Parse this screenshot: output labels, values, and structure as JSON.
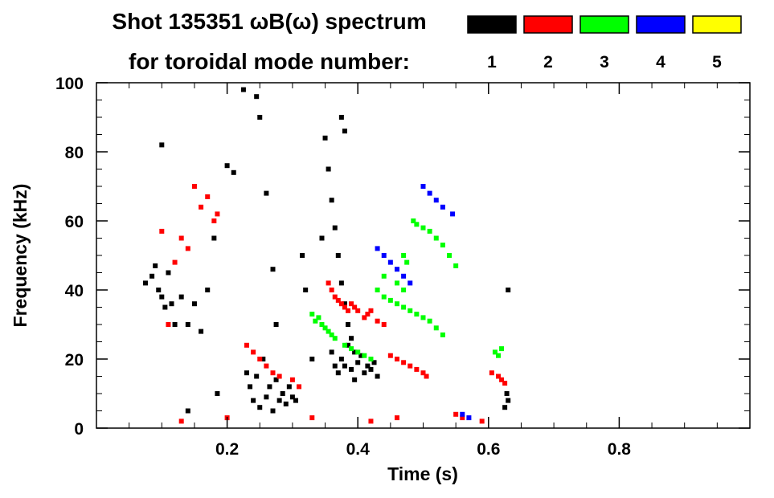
{
  "chart_data": {
    "type": "scatter",
    "title_line1": "Shot 135351 ωB(ω) spectrum",
    "title_line2": "for toroidal mode number:",
    "xlabel": "Time (s)",
    "ylabel": "Frequency (kHz)",
    "xlim": [
      0.0,
      1.0
    ],
    "ylim": [
      0,
      100
    ],
    "x_ticks": [
      0.2,
      0.4,
      0.6,
      0.8
    ],
    "x_tick_labels": [
      "0.2",
      "0.4",
      "0.6",
      "0.8"
    ],
    "y_ticks": [
      0,
      20,
      40,
      60,
      80,
      100
    ],
    "y_tick_labels": [
      "0",
      "20",
      "40",
      "60",
      "80",
      "100"
    ],
    "grid": false,
    "legend_position": "top-right",
    "legend": [
      {
        "n": "1",
        "color": "#000000"
      },
      {
        "n": "2",
        "color": "#ff0000"
      },
      {
        "n": "3",
        "color": "#00ff00"
      },
      {
        "n": "4",
        "color": "#0000ff"
      },
      {
        "n": "5",
        "color": "#ffff00"
      }
    ],
    "series": [
      {
        "n": "1",
        "color": "#000000",
        "points": [
          [
            0.075,
            42
          ],
          [
            0.085,
            44
          ],
          [
            0.09,
            47
          ],
          [
            0.095,
            40
          ],
          [
            0.1,
            38
          ],
          [
            0.105,
            35
          ],
          [
            0.11,
            45
          ],
          [
            0.115,
            36
          ],
          [
            0.12,
            30
          ],
          [
            0.1,
            82
          ],
          [
            0.13,
            38
          ],
          [
            0.14,
            30
          ],
          [
            0.15,
            36
          ],
          [
            0.16,
            28
          ],
          [
            0.17,
            40
          ],
          [
            0.18,
            55
          ],
          [
            0.185,
            10
          ],
          [
            0.14,
            5
          ],
          [
            0.2,
            76
          ],
          [
            0.21,
            74
          ],
          [
            0.225,
            98
          ],
          [
            0.23,
            16
          ],
          [
            0.235,
            12
          ],
          [
            0.24,
            8
          ],
          [
            0.245,
            15
          ],
          [
            0.25,
            6
          ],
          [
            0.255,
            20
          ],
          [
            0.26,
            9
          ],
          [
            0.265,
            12
          ],
          [
            0.27,
            5
          ],
          [
            0.275,
            14
          ],
          [
            0.28,
            8
          ],
          [
            0.285,
            10
          ],
          [
            0.29,
            7
          ],
          [
            0.295,
            12
          ],
          [
            0.3,
            9
          ],
          [
            0.305,
            8
          ],
          [
            0.245,
            96
          ],
          [
            0.25,
            90
          ],
          [
            0.26,
            68
          ],
          [
            0.27,
            46
          ],
          [
            0.275,
            30
          ],
          [
            0.315,
            50
          ],
          [
            0.32,
            40
          ],
          [
            0.33,
            20
          ],
          [
            0.345,
            55
          ],
          [
            0.35,
            84
          ],
          [
            0.355,
            75
          ],
          [
            0.36,
            66
          ],
          [
            0.365,
            58
          ],
          [
            0.37,
            50
          ],
          [
            0.375,
            42
          ],
          [
            0.38,
            36
          ],
          [
            0.385,
            30
          ],
          [
            0.39,
            26
          ],
          [
            0.395,
            22
          ],
          [
            0.36,
            22
          ],
          [
            0.365,
            18
          ],
          [
            0.37,
            16
          ],
          [
            0.375,
            20
          ],
          [
            0.38,
            18
          ],
          [
            0.385,
            24
          ],
          [
            0.39,
            17
          ],
          [
            0.395,
            14
          ],
          [
            0.4,
            19
          ],
          [
            0.405,
            21
          ],
          [
            0.41,
            16
          ],
          [
            0.415,
            18
          ],
          [
            0.42,
            17
          ],
          [
            0.425,
            19
          ],
          [
            0.43,
            15
          ],
          [
            0.375,
            90
          ],
          [
            0.38,
            86
          ],
          [
            0.63,
            40
          ],
          [
            0.625,
            6
          ],
          [
            0.628,
            10
          ],
          [
            0.63,
            8
          ]
        ]
      },
      {
        "n": "2",
        "color": "#ff0000",
        "points": [
          [
            0.1,
            57
          ],
          [
            0.11,
            30
          ],
          [
            0.12,
            48
          ],
          [
            0.13,
            55
          ],
          [
            0.14,
            52
          ],
          [
            0.15,
            70
          ],
          [
            0.16,
            64
          ],
          [
            0.17,
            67
          ],
          [
            0.18,
            60
          ],
          [
            0.185,
            62
          ],
          [
            0.23,
            24
          ],
          [
            0.24,
            22
          ],
          [
            0.25,
            20
          ],
          [
            0.26,
            18
          ],
          [
            0.27,
            16
          ],
          [
            0.28,
            15
          ],
          [
            0.3,
            14
          ],
          [
            0.31,
            12
          ],
          [
            0.355,
            42
          ],
          [
            0.36,
            40
          ],
          [
            0.365,
            38
          ],
          [
            0.37,
            37
          ],
          [
            0.375,
            36
          ],
          [
            0.38,
            35
          ],
          [
            0.385,
            34
          ],
          [
            0.39,
            36
          ],
          [
            0.395,
            35
          ],
          [
            0.4,
            34
          ],
          [
            0.41,
            32
          ],
          [
            0.415,
            33
          ],
          [
            0.42,
            34
          ],
          [
            0.43,
            31
          ],
          [
            0.44,
            30
          ],
          [
            0.45,
            21
          ],
          [
            0.46,
            20
          ],
          [
            0.47,
            19
          ],
          [
            0.48,
            18
          ],
          [
            0.49,
            17
          ],
          [
            0.5,
            16
          ],
          [
            0.505,
            15
          ],
          [
            0.55,
            4
          ],
          [
            0.56,
            3
          ],
          [
            0.59,
            2
          ],
          [
            0.605,
            16
          ],
          [
            0.615,
            15
          ],
          [
            0.62,
            14
          ],
          [
            0.625,
            13
          ],
          [
            0.13,
            2
          ],
          [
            0.2,
            3
          ],
          [
            0.33,
            3
          ],
          [
            0.42,
            2
          ],
          [
            0.46,
            3
          ]
        ]
      },
      {
        "n": "3",
        "color": "#00ff00",
        "points": [
          [
            0.33,
            33
          ],
          [
            0.335,
            31
          ],
          [
            0.34,
            32
          ],
          [
            0.345,
            30
          ],
          [
            0.35,
            29
          ],
          [
            0.355,
            28
          ],
          [
            0.36,
            27
          ],
          [
            0.365,
            26
          ],
          [
            0.38,
            24
          ],
          [
            0.39,
            23
          ],
          [
            0.4,
            22
          ],
          [
            0.41,
            21
          ],
          [
            0.42,
            20
          ],
          [
            0.43,
            40
          ],
          [
            0.44,
            38
          ],
          [
            0.45,
            37
          ],
          [
            0.46,
            36
          ],
          [
            0.47,
            35
          ],
          [
            0.48,
            34
          ],
          [
            0.49,
            33
          ],
          [
            0.5,
            32
          ],
          [
            0.51,
            31
          ],
          [
            0.52,
            29
          ],
          [
            0.53,
            27
          ],
          [
            0.485,
            60
          ],
          [
            0.49,
            59
          ],
          [
            0.5,
            58
          ],
          [
            0.51,
            57
          ],
          [
            0.52,
            55
          ],
          [
            0.53,
            53
          ],
          [
            0.54,
            50
          ],
          [
            0.55,
            47
          ],
          [
            0.44,
            44
          ],
          [
            0.46,
            42
          ],
          [
            0.47,
            40
          ],
          [
            0.47,
            50
          ],
          [
            0.475,
            48
          ],
          [
            0.61,
            22
          ],
          [
            0.615,
            21
          ],
          [
            0.62,
            23
          ]
        ]
      },
      {
        "n": "4",
        "color": "#0000ff",
        "points": [
          [
            0.43,
            52
          ],
          [
            0.44,
            50
          ],
          [
            0.45,
            48
          ],
          [
            0.46,
            46
          ],
          [
            0.47,
            44
          ],
          [
            0.48,
            42
          ],
          [
            0.5,
            70
          ],
          [
            0.51,
            68
          ],
          [
            0.52,
            66
          ],
          [
            0.53,
            64
          ],
          [
            0.545,
            62
          ],
          [
            0.56,
            4
          ],
          [
            0.57,
            3
          ]
        ]
      },
      {
        "n": "5",
        "color": "#ffff00",
        "points": []
      }
    ]
  }
}
